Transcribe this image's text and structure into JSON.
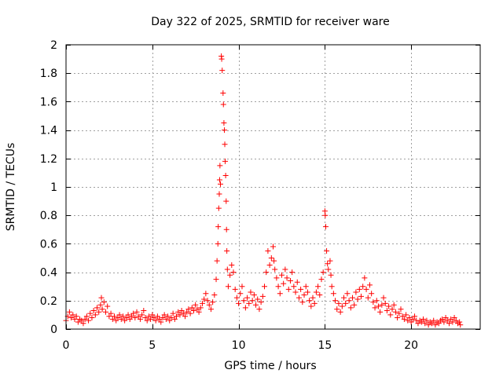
{
  "chart_data": {
    "type": "scatter",
    "title": "Day 322 of 2025, SRMTID for receiver ware",
    "xlabel": "GPS time / hours",
    "ylabel": "SRMTID / TECUs",
    "xlim": [
      0,
      24
    ],
    "ylim": [
      0,
      2
    ],
    "xticks": [
      0,
      5,
      10,
      15,
      20
    ],
    "yticks": [
      0,
      0.2,
      0.4,
      0.6,
      0.8,
      1,
      1.2,
      1.4,
      1.6,
      1.8,
      2
    ],
    "xtick_labels": [
      "0",
      "5",
      "10",
      "15",
      "20"
    ],
    "ytick_labels": [
      "0",
      "0.2",
      "0.4",
      "0.6",
      "0.8",
      "1",
      "1.2",
      "1.4",
      "1.6",
      "1.8",
      "2"
    ],
    "grid": true,
    "marker": "+",
    "color": "#ff0000",
    "series": [
      {
        "name": "SRMTID",
        "points": [
          [
            0.0,
            0.06
          ],
          [
            0.1,
            0.09
          ],
          [
            0.2,
            0.12
          ],
          [
            0.3,
            0.08
          ],
          [
            0.4,
            0.1
          ],
          [
            0.5,
            0.07
          ],
          [
            0.6,
            0.09
          ],
          [
            0.7,
            0.05
          ],
          [
            0.8,
            0.07
          ],
          [
            0.9,
            0.06
          ],
          [
            1.0,
            0.04
          ],
          [
            1.1,
            0.07
          ],
          [
            1.2,
            0.09
          ],
          [
            1.3,
            0.06
          ],
          [
            1.4,
            0.11
          ],
          [
            1.5,
            0.08
          ],
          [
            1.6,
            0.13
          ],
          [
            1.7,
            0.1
          ],
          [
            1.8,
            0.15
          ],
          [
            1.9,
            0.12
          ],
          [
            2.0,
            0.17
          ],
          [
            2.05,
            0.22
          ],
          [
            2.1,
            0.14
          ],
          [
            2.2,
            0.19
          ],
          [
            2.3,
            0.12
          ],
          [
            2.4,
            0.16
          ],
          [
            2.5,
            0.09
          ],
          [
            2.6,
            0.11
          ],
          [
            2.7,
            0.07
          ],
          [
            2.8,
            0.09
          ],
          [
            2.9,
            0.06
          ],
          [
            3.0,
            0.08
          ],
          [
            3.1,
            0.1
          ],
          [
            3.2,
            0.07
          ],
          [
            3.3,
            0.09
          ],
          [
            3.4,
            0.06
          ],
          [
            3.5,
            0.08
          ],
          [
            3.6,
            0.1
          ],
          [
            3.7,
            0.07
          ],
          [
            3.8,
            0.09
          ],
          [
            3.9,
            0.11
          ],
          [
            4.0,
            0.08
          ],
          [
            4.1,
            0.12
          ],
          [
            4.2,
            0.09
          ],
          [
            4.3,
            0.07
          ],
          [
            4.4,
            0.1
          ],
          [
            4.5,
            0.13
          ],
          [
            4.6,
            0.08
          ],
          [
            4.7,
            0.06
          ],
          [
            4.8,
            0.09
          ],
          [
            4.9,
            0.07
          ],
          [
            5.0,
            0.1
          ],
          [
            5.1,
            0.08
          ],
          [
            5.2,
            0.06
          ],
          [
            5.3,
            0.09
          ],
          [
            5.4,
            0.07
          ],
          [
            5.5,
            0.05
          ],
          [
            5.6,
            0.08
          ],
          [
            5.7,
            0.1
          ],
          [
            5.8,
            0.07
          ],
          [
            5.9,
            0.09
          ],
          [
            6.0,
            0.06
          ],
          [
            6.1,
            0.08
          ],
          [
            6.2,
            0.11
          ],
          [
            6.3,
            0.07
          ],
          [
            6.4,
            0.09
          ],
          [
            6.5,
            0.12
          ],
          [
            6.6,
            0.1
          ],
          [
            6.7,
            0.13
          ],
          [
            6.8,
            0.11
          ],
          [
            6.9,
            0.09
          ],
          [
            7.0,
            0.12
          ],
          [
            7.1,
            0.14
          ],
          [
            7.2,
            0.11
          ],
          [
            7.3,
            0.15
          ],
          [
            7.4,
            0.13
          ],
          [
            7.5,
            0.17
          ],
          [
            7.6,
            0.14
          ],
          [
            7.7,
            0.12
          ],
          [
            7.8,
            0.15
          ],
          [
            7.9,
            0.18
          ],
          [
            8.0,
            0.21
          ],
          [
            8.1,
            0.25
          ],
          [
            8.2,
            0.2
          ],
          [
            8.3,
            0.17
          ],
          [
            8.4,
            0.14
          ],
          [
            8.5,
            0.19
          ],
          [
            8.6,
            0.24
          ],
          [
            8.7,
            0.35
          ],
          [
            8.75,
            0.48
          ],
          [
            8.8,
            0.6
          ],
          [
            8.82,
            0.72
          ],
          [
            8.85,
            0.85
          ],
          [
            8.88,
            0.95
          ],
          [
            8.9,
            1.05
          ],
          [
            8.92,
            1.15
          ],
          [
            8.95,
            1.02
          ],
          [
            9.0,
            1.92
          ],
          [
            9.02,
            1.9
          ],
          [
            9.05,
            1.82
          ],
          [
            9.1,
            1.66
          ],
          [
            9.12,
            1.58
          ],
          [
            9.15,
            1.45
          ],
          [
            9.18,
            1.4
          ],
          [
            9.2,
            1.3
          ],
          [
            9.22,
            1.18
          ],
          [
            9.25,
            1.08
          ],
          [
            9.28,
            0.9
          ],
          [
            9.3,
            0.7
          ],
          [
            9.32,
            0.55
          ],
          [
            9.35,
            0.42
          ],
          [
            9.4,
            0.3
          ],
          [
            9.5,
            0.38
          ],
          [
            9.6,
            0.45
          ],
          [
            9.7,
            0.4
          ],
          [
            9.8,
            0.28
          ],
          [
            9.9,
            0.22
          ],
          [
            10.0,
            0.18
          ],
          [
            10.1,
            0.25
          ],
          [
            10.2,
            0.3
          ],
          [
            10.3,
            0.2
          ],
          [
            10.4,
            0.15
          ],
          [
            10.5,
            0.22
          ],
          [
            10.6,
            0.18
          ],
          [
            10.7,
            0.26
          ],
          [
            10.8,
            0.2
          ],
          [
            10.9,
            0.24
          ],
          [
            11.0,
            0.17
          ],
          [
            11.1,
            0.21
          ],
          [
            11.2,
            0.14
          ],
          [
            11.3,
            0.19
          ],
          [
            11.4,
            0.23
          ],
          [
            11.5,
            0.3
          ],
          [
            11.6,
            0.4
          ],
          [
            11.7,
            0.55
          ],
          [
            11.8,
            0.45
          ],
          [
            11.9,
            0.5
          ],
          [
            12.0,
            0.58
          ],
          [
            12.05,
            0.48
          ],
          [
            12.1,
            0.42
          ],
          [
            12.2,
            0.36
          ],
          [
            12.3,
            0.3
          ],
          [
            12.4,
            0.25
          ],
          [
            12.5,
            0.38
          ],
          [
            12.6,
            0.32
          ],
          [
            12.7,
            0.42
          ],
          [
            12.8,
            0.36
          ],
          [
            12.9,
            0.28
          ],
          [
            13.0,
            0.34
          ],
          [
            13.1,
            0.4
          ],
          [
            13.2,
            0.3
          ],
          [
            13.3,
            0.26
          ],
          [
            13.4,
            0.33
          ],
          [
            13.5,
            0.22
          ],
          [
            13.6,
            0.28
          ],
          [
            13.7,
            0.19
          ],
          [
            13.8,
            0.24
          ],
          [
            13.9,
            0.3
          ],
          [
            14.0,
            0.26
          ],
          [
            14.1,
            0.2
          ],
          [
            14.2,
            0.16
          ],
          [
            14.3,
            0.22
          ],
          [
            14.4,
            0.18
          ],
          [
            14.5,
            0.26
          ],
          [
            14.6,
            0.3
          ],
          [
            14.7,
            0.24
          ],
          [
            14.8,
            0.35
          ],
          [
            14.9,
            0.4
          ],
          [
            15.0,
            0.83
          ],
          [
            15.02,
            0.8
          ],
          [
            15.05,
            0.72
          ],
          [
            15.1,
            0.55
          ],
          [
            15.15,
            0.46
          ],
          [
            15.2,
            0.42
          ],
          [
            15.3,
            0.48
          ],
          [
            15.35,
            0.38
          ],
          [
            15.4,
            0.3
          ],
          [
            15.5,
            0.25
          ],
          [
            15.6,
            0.2
          ],
          [
            15.7,
            0.14
          ],
          [
            15.8,
            0.18
          ],
          [
            15.9,
            0.12
          ],
          [
            16.0,
            0.16
          ],
          [
            16.1,
            0.22
          ],
          [
            16.2,
            0.18
          ],
          [
            16.3,
            0.25
          ],
          [
            16.4,
            0.2
          ],
          [
            16.5,
            0.15
          ],
          [
            16.6,
            0.22
          ],
          [
            16.7,
            0.17
          ],
          [
            16.8,
            0.26
          ],
          [
            16.9,
            0.21
          ],
          [
            17.0,
            0.28
          ],
          [
            17.1,
            0.23
          ],
          [
            17.2,
            0.3
          ],
          [
            17.3,
            0.36
          ],
          [
            17.4,
            0.28
          ],
          [
            17.5,
            0.22
          ],
          [
            17.6,
            0.31
          ],
          [
            17.7,
            0.25
          ],
          [
            17.8,
            0.19
          ],
          [
            17.9,
            0.15
          ],
          [
            18.0,
            0.2
          ],
          [
            18.1,
            0.16
          ],
          [
            18.2,
            0.12
          ],
          [
            18.3,
            0.17
          ],
          [
            18.4,
            0.22
          ],
          [
            18.5,
            0.18
          ],
          [
            18.6,
            0.13
          ],
          [
            18.7,
            0.16
          ],
          [
            18.8,
            0.1
          ],
          [
            18.9,
            0.14
          ],
          [
            19.0,
            0.17
          ],
          [
            19.1,
            0.12
          ],
          [
            19.2,
            0.08
          ],
          [
            19.3,
            0.11
          ],
          [
            19.4,
            0.14
          ],
          [
            19.5,
            0.09
          ],
          [
            19.6,
            0.07
          ],
          [
            19.7,
            0.1
          ],
          [
            19.8,
            0.06
          ],
          [
            19.9,
            0.08
          ],
          [
            20.0,
            0.05
          ],
          [
            20.1,
            0.07
          ],
          [
            20.2,
            0.09
          ],
          [
            20.3,
            0.06
          ],
          [
            20.4,
            0.04
          ],
          [
            20.5,
            0.06
          ],
          [
            20.6,
            0.05
          ],
          [
            20.7,
            0.07
          ],
          [
            20.8,
            0.04
          ],
          [
            20.9,
            0.06
          ],
          [
            21.0,
            0.03
          ],
          [
            21.1,
            0.05
          ],
          [
            21.2,
            0.04
          ],
          [
            21.3,
            0.06
          ],
          [
            21.4,
            0.03
          ],
          [
            21.5,
            0.05
          ],
          [
            21.6,
            0.04
          ],
          [
            21.7,
            0.06
          ],
          [
            21.8,
            0.07
          ],
          [
            21.9,
            0.05
          ],
          [
            22.0,
            0.08
          ],
          [
            22.1,
            0.06
          ],
          [
            22.2,
            0.04
          ],
          [
            22.3,
            0.07
          ],
          [
            22.4,
            0.05
          ],
          [
            22.5,
            0.08
          ],
          [
            22.6,
            0.06
          ],
          [
            22.7,
            0.04
          ],
          [
            22.8,
            0.05
          ],
          [
            22.85,
            0.03
          ]
        ]
      }
    ]
  }
}
